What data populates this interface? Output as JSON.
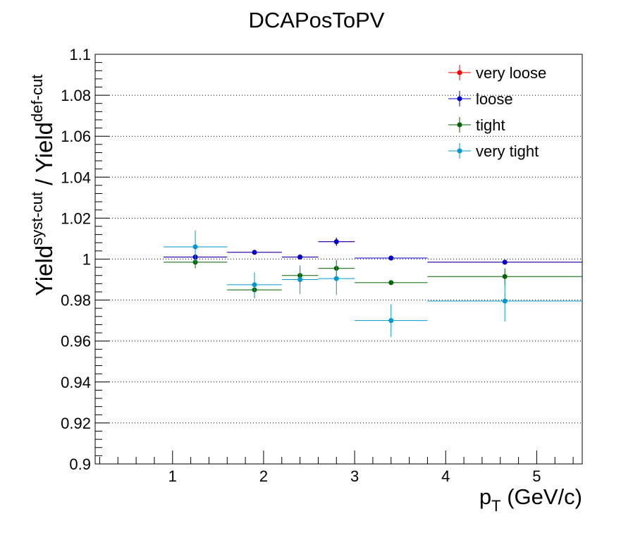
{
  "chart_data": {
    "type": "scatter",
    "title": "DCAPosToPV",
    "xlabel": {
      "main": "p",
      "sub": "T",
      "unit": " (GeV/c)"
    },
    "ylabel": {
      "base1": "Yield",
      "sup1": "syst-cut",
      "sep": " / ",
      "base2": "Yield",
      "sup2": "def-cut"
    },
    "xlim": [
      0.15,
      5.5
    ],
    "ylim": [
      0.9,
      1.1
    ],
    "x_ticks": [
      "1",
      "2",
      "3",
      "4",
      "5"
    ],
    "y_ticks": [
      "0.9",
      "0.92",
      "0.94",
      "0.96",
      "0.98",
      "1",
      "1.02",
      "1.04",
      "1.06",
      "1.08",
      "1.1"
    ],
    "grid": "horizontal dotted",
    "legend_position": "top-right",
    "bins": [
      {
        "lo": 0.9,
        "hi": 1.6,
        "x": 1.25
      },
      {
        "lo": 1.6,
        "hi": 2.2,
        "x": 1.9
      },
      {
        "lo": 2.2,
        "hi": 2.6,
        "x": 2.4
      },
      {
        "lo": 2.6,
        "hi": 3.0,
        "x": 2.8
      },
      {
        "lo": 3.0,
        "hi": 3.8,
        "x": 3.4
      },
      {
        "lo": 3.8,
        "hi": 5.5,
        "x": 4.65
      }
    ],
    "series": [
      {
        "name": "very loose",
        "color": "#ff0000",
        "values": [
          1.001,
          1.0033,
          1.001,
          1.0085,
          1.0005,
          0.9985
        ],
        "errors": [
          0.0015,
          0.001,
          0.0012,
          0.002,
          0.001,
          0.0008
        ]
      },
      {
        "name": "loose",
        "color": "#0000cc",
        "values": [
          1.001,
          1.0033,
          1.001,
          1.0085,
          1.0005,
          0.9985
        ],
        "errors": [
          0.0015,
          0.001,
          0.0012,
          0.002,
          0.001,
          0.0008
        ]
      },
      {
        "name": "tight",
        "color": "#006400",
        "values": [
          0.9985,
          0.985,
          0.992,
          0.9955,
          0.9885,
          0.9915
        ],
        "errors": [
          0.003,
          0.004,
          0.004,
          0.004,
          0.001,
          0.004
        ]
      },
      {
        "name": "very tight",
        "color": "#0099cc",
        "values": [
          1.006,
          0.9875,
          0.99,
          0.9905,
          0.97,
          0.9795
        ],
        "errors": [
          0.008,
          0.006,
          0.007,
          0.008,
          0.008,
          0.01
        ]
      }
    ]
  }
}
